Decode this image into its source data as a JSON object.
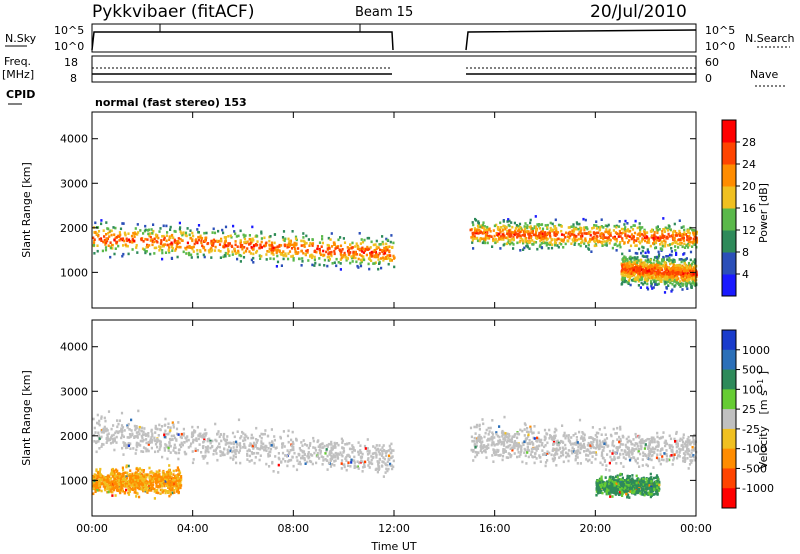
{
  "header": {
    "station": "Pykkvibaer (fitACF)",
    "beam": "Beam 15",
    "date": "20/Jul/2010"
  },
  "params": {
    "nsky_label": "N.Sky",
    "nsearch_label": "N.Search",
    "freq_label_1": "Freq.",
    "freq_label_2": "[MHz]",
    "nave_label": "Nave",
    "cpid_label": "CPID",
    "cpid_text": "normal (fast stereo) 153",
    "noise_ticks": [
      "10^5",
      "10^0"
    ],
    "freq_ticks": [
      "18",
      "8"
    ],
    "nave_ticks": [
      "60",
      "0"
    ]
  },
  "chart_data": [
    {
      "type": "heatmap",
      "title": "",
      "xlabel": "Time UT",
      "ylabel": "Slant Range [km]",
      "xlim": [
        0,
        24
      ],
      "ylim": [
        200,
        4600
      ],
      "x_ticks": [
        "00:00",
        "04:00",
        "08:00",
        "12:00",
        "16:00",
        "20:00",
        "00:00"
      ],
      "y_ticks": [
        1000,
        2000,
        3000,
        4000
      ],
      "data_gap_hours": [
        12.0,
        15.0
      ],
      "colorbar": {
        "label": "Power [dB]",
        "ticks": [
          "4",
          "8",
          "12",
          "16",
          "20",
          "24",
          "28"
        ],
        "colors": [
          "#1a1aff",
          "#2b4fb8",
          "#2e8a5a",
          "#5ab84a",
          "#f0c020",
          "#ff8c00",
          "#ff4400",
          "#ff0000"
        ]
      },
      "echo_bands": [
        {
          "t_start": 0.0,
          "t_end": 12.0,
          "center_start_km": 1800,
          "center_end_km": 1450,
          "width_km": 500
        },
        {
          "t_start": 15.0,
          "t_end": 24.0,
          "center_start_km": 1900,
          "center_end_km": 1800,
          "width_km": 450
        },
        {
          "t_start": 21.0,
          "t_end": 24.0,
          "center_start_km": 1100,
          "center_end_km": 1000,
          "width_km": 500
        }
      ]
    },
    {
      "type": "heatmap",
      "title": "",
      "xlabel": "Time UT",
      "ylabel": "Slant Range [km]",
      "xlim": [
        0,
        24
      ],
      "ylim": [
        200,
        4600
      ],
      "x_ticks": [
        "00:00",
        "04:00",
        "08:00",
        "12:00",
        "16:00",
        "20:00",
        "00:00"
      ],
      "y_ticks": [
        1000,
        2000,
        3000,
        4000
      ],
      "data_gap_hours": [
        12.0,
        15.0
      ],
      "colorbar": {
        "label": "Velocity",
        "unit_label": "[m s",
        "unit_sup": "-1",
        "unit_close": "]",
        "ticks": [
          "1000",
          "500",
          "100",
          "25",
          "-25",
          "-100",
          "-500",
          "-1000"
        ],
        "colors": [
          "#1a3ccc",
          "#2b6fb8",
          "#2e8a5a",
          "#66cc33",
          "#c0c0c0",
          "#f0c020",
          "#ff8c00",
          "#ff4400",
          "#ff0000"
        ]
      },
      "echo_bands": [
        {
          "t_start": 0.0,
          "t_end": 12.0,
          "center_start_km": 2100,
          "center_end_km": 1500,
          "width_km": 600,
          "velocity": "ground-scatter"
        },
        {
          "t_start": 0.0,
          "t_end": 3.5,
          "center_start_km": 1000,
          "center_end_km": 1000,
          "width_km": 400,
          "velocity": "-100..-500"
        },
        {
          "t_start": 15.0,
          "t_end": 24.0,
          "center_start_km": 1900,
          "center_end_km": 1700,
          "width_km": 600,
          "velocity": "ground-scatter"
        },
        {
          "t_start": 20.0,
          "t_end": 22.5,
          "center_start_km": 900,
          "center_end_km": 900,
          "width_km": 300,
          "velocity": "100..500"
        }
      ]
    }
  ]
}
